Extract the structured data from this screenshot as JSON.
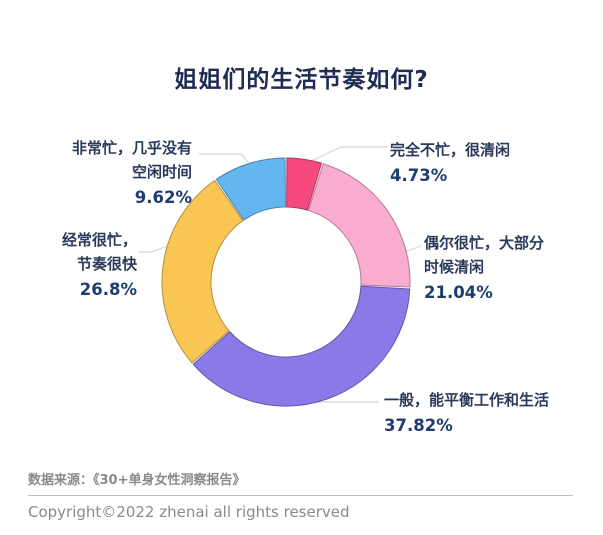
{
  "title": "姐姐们的生活节奏如何?",
  "chart_data": {
    "type": "pie",
    "subtype": "donut",
    "title": "姐姐们的生活节奏如何?",
    "start_angle_deg": 0,
    "direction": "clockwise",
    "total": 100,
    "segments": [
      {
        "label": "完全不忙，很清闲",
        "value": 4.73,
        "pct_label": "4.73%",
        "color": "#F6497E"
      },
      {
        "label": "偶尔很忙，大部分时候清闲",
        "value": 21.04,
        "pct_label": "21.04%",
        "color": "#F9ACCF"
      },
      {
        "label": "一般，能平衡工作和生活",
        "value": 37.82,
        "pct_label": "37.82%",
        "color": "#8A7AE8"
      },
      {
        "label": "经常很忙，节奏很快",
        "value": 26.8,
        "pct_label": "26.8%",
        "color": "#F9C553"
      },
      {
        "label": "非常忙，几乎没有空闲时间",
        "value": 9.62,
        "pct_label": "9.62%",
        "color": "#63B6F0"
      }
    ],
    "legend_position": "callout-labels",
    "grid": false
  },
  "callouts": {
    "very_busy": {
      "name": "非常忙，几乎没有\n空闲时间",
      "pct": "9.62%"
    },
    "not_busy": {
      "name": "完全不忙，很清闲",
      "pct": "4.73%"
    },
    "occasional": {
      "name": "偶尔很忙，大部分\n时候清闲",
      "pct": "21.04%"
    },
    "balanced": {
      "name": "一般，能平衡工作和生活",
      "pct": "37.82%"
    },
    "often_busy": {
      "name": "经常很忙，\n节奏很快",
      "pct": "26.8%"
    }
  },
  "footer": {
    "source": "数据来源：《30+单身女性洞察报告》",
    "copyright": "Copyright©2022 zhenai all rights reserved"
  },
  "colors": {
    "background": "#FFFFFF",
    "title_text": "#1E2B52",
    "label_text": "#2A3A5C",
    "pct_text": "#1D3D6E",
    "footer_text": "#8A8A8A",
    "leader_line": "#DCDCDC"
  }
}
